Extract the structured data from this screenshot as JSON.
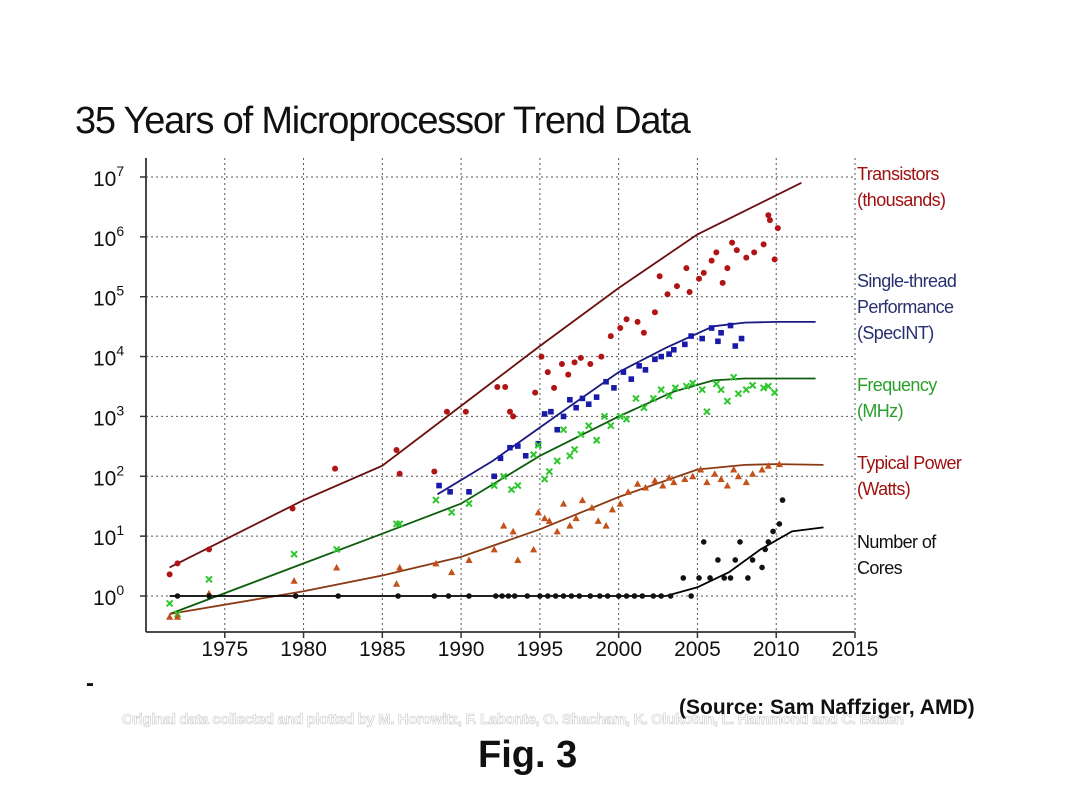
{
  "title": "35 Years of Microprocessor Trend Data",
  "footer": {
    "dash": "-",
    "credit": "Original data collected and plotted by M. Horowitz, F. Labonte, O. Shacham, K. Olukotun, L. Hammond and C. Batten",
    "source": "(Source: Sam Naffziger, AMD)",
    "caption": "Fig. 3"
  },
  "colors": {
    "transistors": "#b01414",
    "single_thread": "#1a1aa8",
    "frequency": "#2ec82e",
    "power": "#c4501a",
    "cores": "#111111"
  },
  "chart_data": {
    "type": "scatter",
    "title": "35 Years of Microprocessor Trend Data",
    "xlabel": "",
    "ylabel": "",
    "xlim": [
      1970,
      2015
    ],
    "ylim": [
      0.3,
      10000000
    ],
    "yscale": "log",
    "grid": true,
    "legend_position": "right",
    "x_ticks": [
      1975,
      1980,
      1985,
      1990,
      1995,
      2000,
      2005,
      2010,
      2015
    ],
    "y_ticks": [
      {
        "value": 1,
        "base": "10",
        "exp": "0"
      },
      {
        "value": 10,
        "base": "10",
        "exp": "1"
      },
      {
        "value": 100,
        "base": "10",
        "exp": "2"
      },
      {
        "value": 1000,
        "base": "10",
        "exp": "3"
      },
      {
        "value": 10000,
        "base": "10",
        "exp": "4"
      },
      {
        "value": 100000,
        "base": "10",
        "exp": "5"
      },
      {
        "value": 1000000,
        "base": "10",
        "exp": "6"
      },
      {
        "value": 10000000,
        "base": "10",
        "exp": "7"
      }
    ],
    "series": [
      {
        "key": "transistors",
        "legend": [
          "Transistors",
          "(thousands)"
        ],
        "marker": "circle",
        "points": [
          [
            1971.5,
            2.3
          ],
          [
            1972,
            3.5
          ],
          [
            1974,
            6
          ],
          [
            1979.3,
            29
          ],
          [
            1982,
            134
          ],
          [
            1985.9,
            275
          ],
          [
            1986.1,
            110
          ],
          [
            1988.3,
            120
          ],
          [
            1989.1,
            1200
          ],
          [
            1990.3,
            1200
          ],
          [
            1992.3,
            3100
          ],
          [
            1992.8,
            3100
          ],
          [
            1993.1,
            1200
          ],
          [
            1993.3,
            1000
          ],
          [
            1994.7,
            2500
          ],
          [
            1995.1,
            10000
          ],
          [
            1995.5,
            5500
          ],
          [
            1995.9,
            3000
          ],
          [
            1996.4,
            7500
          ],
          [
            1996.8,
            5000
          ],
          [
            1997.2,
            8000
          ],
          [
            1997.6,
            9500
          ],
          [
            1998.2,
            7500
          ],
          [
            1998.9,
            10000
          ],
          [
            1999.5,
            22000
          ],
          [
            2000.1,
            30000
          ],
          [
            2000.5,
            42000
          ],
          [
            2001.2,
            38000
          ],
          [
            2001.6,
            25000
          ],
          [
            2002.3,
            55000
          ],
          [
            2002.6,
            220000
          ],
          [
            2003.1,
            110000
          ],
          [
            2003.7,
            150000
          ],
          [
            2004.3,
            300000
          ],
          [
            2004.5,
            120000
          ],
          [
            2005.1,
            200000
          ],
          [
            2005.4,
            250000
          ],
          [
            2005.9,
            400000
          ],
          [
            2006.2,
            550000
          ],
          [
            2006.6,
            170000
          ],
          [
            2006.9,
            300000
          ],
          [
            2007.2,
            800000
          ],
          [
            2007.5,
            600000
          ],
          [
            2008.1,
            450000
          ],
          [
            2008.6,
            550000
          ],
          [
            2009.2,
            750000
          ],
          [
            2009.5,
            2300000
          ],
          [
            2009.6,
            1900000
          ],
          [
            2010.1,
            1400000
          ],
          [
            2009.9,
            420000
          ]
        ],
        "trend": [
          [
            1971.5,
            3
          ],
          [
            1980,
            40
          ],
          [
            1985,
            150
          ],
          [
            1990,
            1500
          ],
          [
            1995,
            15000
          ],
          [
            2000,
            140000
          ],
          [
            2005,
            1100000
          ],
          [
            2011.6,
            8000000
          ]
        ]
      },
      {
        "key": "single_thread",
        "legend": [
          "Single-thread",
          "Performance",
          "(SpecINT)"
        ],
        "marker": "square",
        "points": [
          [
            1988.6,
            70
          ],
          [
            1989.3,
            55
          ],
          [
            1990.5,
            55
          ],
          [
            1992.1,
            100
          ],
          [
            1992.5,
            200
          ],
          [
            1993.1,
            300
          ],
          [
            1993.6,
            320
          ],
          [
            1994.1,
            220
          ],
          [
            1994.9,
            350
          ],
          [
            1995.3,
            1100
          ],
          [
            1995.7,
            1200
          ],
          [
            1996.1,
            600
          ],
          [
            1996.5,
            1000
          ],
          [
            1996.9,
            1900
          ],
          [
            1997.3,
            1400
          ],
          [
            1997.7,
            2000
          ],
          [
            1998.1,
            1600
          ],
          [
            1998.6,
            2100
          ],
          [
            1999.2,
            3800
          ],
          [
            1999.7,
            3000
          ],
          [
            2000.3,
            5500
          ],
          [
            2000.8,
            4200
          ],
          [
            2001.3,
            7000
          ],
          [
            2001.7,
            6000
          ],
          [
            2002.3,
            9000
          ],
          [
            2002.7,
            10000
          ],
          [
            2003.2,
            11000
          ],
          [
            2003.5,
            13000
          ],
          [
            2004.2,
            16000
          ],
          [
            2004.6,
            22000
          ],
          [
            2005.3,
            20000
          ],
          [
            2005.9,
            30000
          ],
          [
            2006.3,
            18000
          ],
          [
            2006.5,
            25000
          ],
          [
            2007.1,
            33000
          ],
          [
            2007.4,
            15000
          ],
          [
            2007.8,
            20000
          ]
        ],
        "trend": [
          [
            1988.5,
            50
          ],
          [
            1992,
            180
          ],
          [
            1996,
            1000
          ],
          [
            2000,
            5500
          ],
          [
            2003,
            14000
          ],
          [
            2006,
            32000
          ],
          [
            2008,
            37000
          ],
          [
            2010,
            38000
          ],
          [
            2012.5,
            38000
          ]
        ]
      },
      {
        "key": "frequency",
        "legend": [
          "Frequency",
          "(MHz)"
        ],
        "marker": "x",
        "points": [
          [
            1971.5,
            0.75
          ],
          [
            1972,
            0.5
          ],
          [
            1974,
            1.9
          ],
          [
            1979.4,
            5
          ],
          [
            1982.1,
            6
          ],
          [
            1985.9,
            16
          ],
          [
            1986.1,
            16
          ],
          [
            1988.4,
            40
          ],
          [
            1989.4,
            25
          ],
          [
            1990.5,
            35
          ],
          [
            1992.1,
            70
          ],
          [
            1992.7,
            100
          ],
          [
            1993.2,
            60
          ],
          [
            1993.6,
            70
          ],
          [
            1994.6,
            230
          ],
          [
            1994.9,
            330
          ],
          [
            1995.3,
            90
          ],
          [
            1995.6,
            120
          ],
          [
            1996.1,
            180
          ],
          [
            1996.5,
            600
          ],
          [
            1996.9,
            220
          ],
          [
            1997.2,
            280
          ],
          [
            1997.6,
            500
          ],
          [
            1998.1,
            700
          ],
          [
            1998.6,
            400
          ],
          [
            1999.1,
            1000
          ],
          [
            1999.5,
            700
          ],
          [
            2000.1,
            1000
          ],
          [
            2000.5,
            900
          ],
          [
            2001.1,
            2000
          ],
          [
            2001.6,
            1400
          ],
          [
            2002.2,
            2000
          ],
          [
            2002.7,
            2800
          ],
          [
            2003.2,
            2200
          ],
          [
            2003.6,
            3000
          ],
          [
            2004.3,
            3200
          ],
          [
            2004.7,
            3600
          ],
          [
            2005.3,
            2800
          ],
          [
            2005.6,
            1200
          ],
          [
            2006.2,
            3500
          ],
          [
            2006.5,
            2800
          ],
          [
            2006.9,
            1800
          ],
          [
            2007.3,
            4500
          ],
          [
            2007.6,
            2400
          ],
          [
            2008.1,
            2800
          ],
          [
            2008.5,
            3300
          ],
          [
            2009.2,
            3000
          ],
          [
            2009.5,
            3200
          ],
          [
            2009.9,
            2500
          ]
        ],
        "trend": [
          [
            1971.5,
            0.5
          ],
          [
            1980,
            3.5
          ],
          [
            1985,
            11
          ],
          [
            1990,
            35
          ],
          [
            1995,
            220
          ],
          [
            2000,
            1000
          ],
          [
            2003.5,
            2600
          ],
          [
            2006,
            4000
          ],
          [
            2008,
            4300
          ],
          [
            2012.5,
            4300
          ]
        ]
      },
      {
        "key": "power",
        "legend": [
          "Typical Power",
          "(Watts)"
        ],
        "marker": "triangle",
        "points": [
          [
            1971.5,
            0.45
          ],
          [
            1972,
            0.45
          ],
          [
            1974,
            1.1
          ],
          [
            1979.4,
            1.8
          ],
          [
            1982.1,
            3
          ],
          [
            1985.9,
            1.6
          ],
          [
            1986.1,
            3
          ],
          [
            1988.4,
            3.5
          ],
          [
            1989.4,
            2.5
          ],
          [
            1990.5,
            4
          ],
          [
            1992.1,
            6
          ],
          [
            1992.7,
            15
          ],
          [
            1993.3,
            12
          ],
          [
            1993.6,
            4
          ],
          [
            1994.6,
            6
          ],
          [
            1994.9,
            25
          ],
          [
            1995.3,
            20
          ],
          [
            1995.6,
            18
          ],
          [
            1996.1,
            12
          ],
          [
            1996.5,
            35
          ],
          [
            1996.9,
            15
          ],
          [
            1997.3,
            20
          ],
          [
            1997.7,
            40
          ],
          [
            1998.3,
            30
          ],
          [
            1998.7,
            18
          ],
          [
            1999.2,
            15
          ],
          [
            1999.6,
            28
          ],
          [
            2000.1,
            35
          ],
          [
            2000.6,
            55
          ],
          [
            2001.2,
            75
          ],
          [
            2001.7,
            65
          ],
          [
            2002.3,
            85
          ],
          [
            2002.8,
            70
          ],
          [
            2003.2,
            95
          ],
          [
            2003.5,
            80
          ],
          [
            2004.2,
            90
          ],
          [
            2004.7,
            100
          ],
          [
            2005.2,
            130
          ],
          [
            2005.6,
            80
          ],
          [
            2006.1,
            110
          ],
          [
            2006.5,
            90
          ],
          [
            2006.9,
            70
          ],
          [
            2007.3,
            130
          ],
          [
            2007.6,
            100
          ],
          [
            2008.1,
            80
          ],
          [
            2008.5,
            110
          ],
          [
            2009.1,
            130
          ],
          [
            2009.5,
            150
          ],
          [
            2010.2,
            160
          ]
        ],
        "trend": [
          [
            1971.5,
            0.5
          ],
          [
            1980,
            1.2
          ],
          [
            1985,
            2.2
          ],
          [
            1990,
            4.5
          ],
          [
            1995,
            13
          ],
          [
            2000,
            45
          ],
          [
            2005,
            130
          ],
          [
            2008,
            155
          ],
          [
            2010,
            160
          ],
          [
            2013,
            155
          ]
        ]
      },
      {
        "key": "cores",
        "legend": [
          "Number of",
          "Cores"
        ],
        "marker": "dot",
        "points": [
          [
            1972,
            1
          ],
          [
            1974,
            1
          ],
          [
            1979.5,
            1
          ],
          [
            1982.2,
            1
          ],
          [
            1986,
            1
          ],
          [
            1988.3,
            1
          ],
          [
            1989.2,
            1
          ],
          [
            1990.5,
            1
          ],
          [
            1992.2,
            1
          ],
          [
            1992.6,
            1
          ],
          [
            1993,
            1
          ],
          [
            1993.4,
            1
          ],
          [
            1994.2,
            1
          ],
          [
            1995,
            1
          ],
          [
            1995.5,
            1
          ],
          [
            1996,
            1
          ],
          [
            1996.5,
            1
          ],
          [
            1997,
            1
          ],
          [
            1997.5,
            1
          ],
          [
            1998.2,
            1
          ],
          [
            1998.8,
            1
          ],
          [
            1999.3,
            1
          ],
          [
            2000,
            1
          ],
          [
            2000.5,
            1
          ],
          [
            2001,
            1
          ],
          [
            2001.5,
            1
          ],
          [
            2002.2,
            1
          ],
          [
            2002.7,
            1
          ],
          [
            2003.3,
            1
          ],
          [
            2004.1,
            2
          ],
          [
            2004.6,
            1
          ],
          [
            2005.1,
            2
          ],
          [
            2005.4,
            8
          ],
          [
            2005.8,
            2
          ],
          [
            2006.3,
            4
          ],
          [
            2006.7,
            2
          ],
          [
            2007.1,
            2
          ],
          [
            2007.4,
            4
          ],
          [
            2007.7,
            8
          ],
          [
            2008.2,
            2
          ],
          [
            2008.5,
            4
          ],
          [
            2009.1,
            3
          ],
          [
            2009.3,
            6
          ],
          [
            2009.5,
            8
          ],
          [
            2009.8,
            12
          ],
          [
            2010.2,
            16
          ],
          [
            2010.4,
            40
          ]
        ],
        "trend": [
          [
            1971.5,
            1
          ],
          [
            2003,
            1
          ],
          [
            2005,
            1.4
          ],
          [
            2007,
            2.5
          ],
          [
            2009,
            6
          ],
          [
            2011,
            12
          ],
          [
            2013,
            14
          ]
        ]
      }
    ]
  }
}
